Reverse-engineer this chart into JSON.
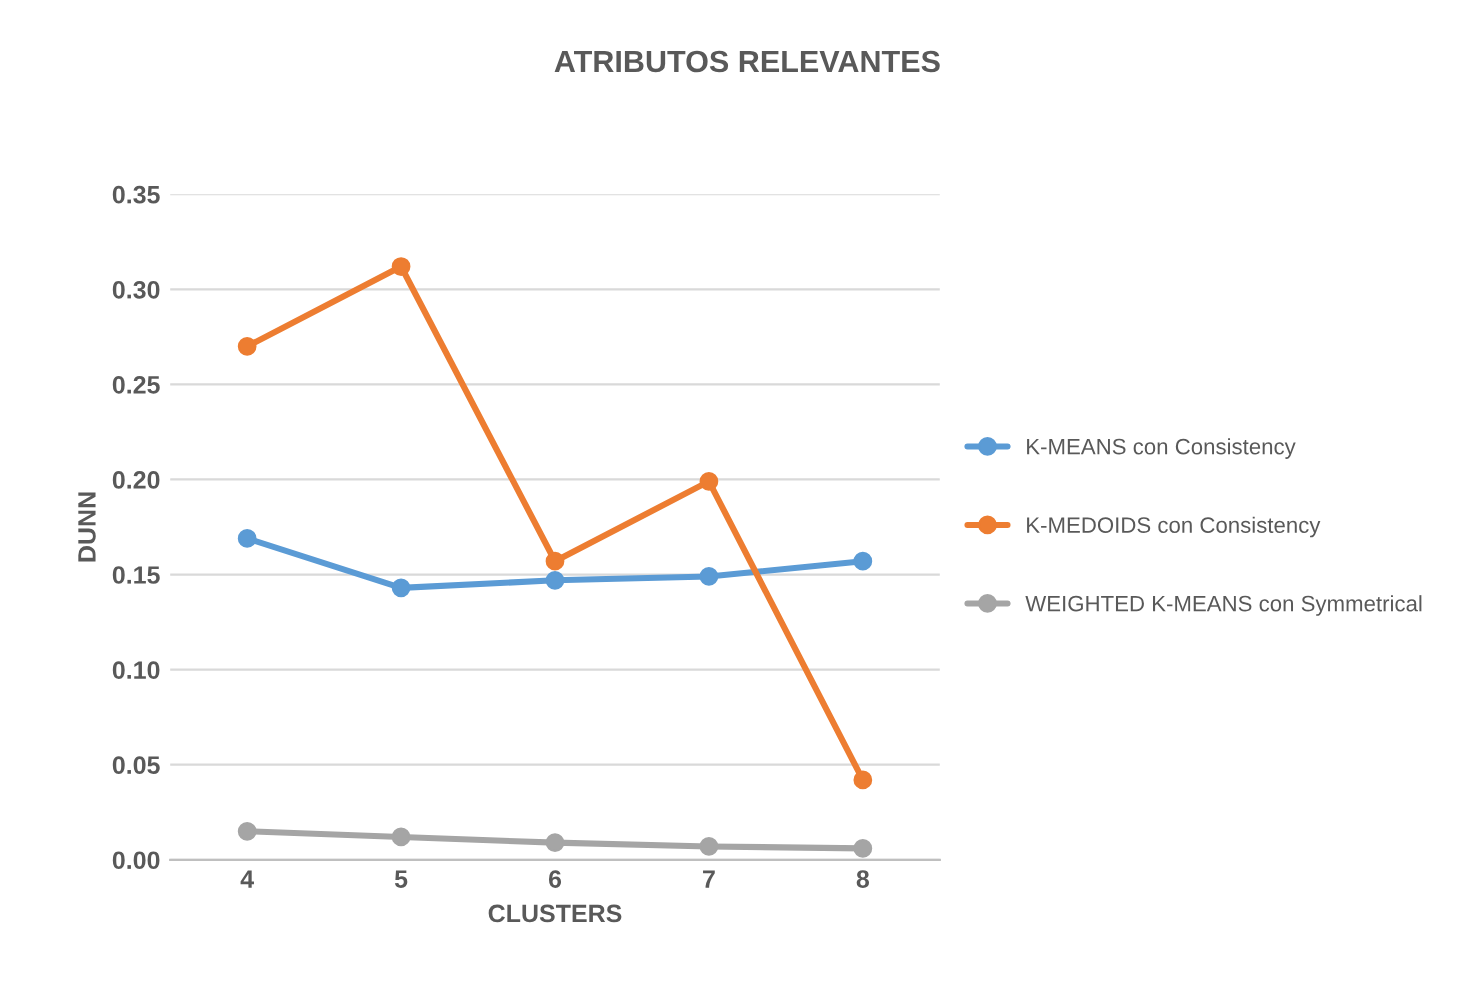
{
  "chart_data": {
    "type": "line",
    "title": "ATRIBUTOS RELEVANTES",
    "xlabel": "CLUSTERS",
    "ylabel": "DUNN",
    "categories": [
      "4",
      "5",
      "6",
      "7",
      "8"
    ],
    "series": [
      {
        "name": "K-MEANS con Consistency",
        "color": "#5b9bd5",
        "values": [
          0.169,
          0.143,
          0.147,
          0.149,
          0.157
        ]
      },
      {
        "name": "K-MEDOIDS con Consistency",
        "color": "#ed7d31",
        "values": [
          0.27,
          0.312,
          0.157,
          0.199,
          0.042
        ]
      },
      {
        "name": "WEIGHTED K-MEANS con Symmetrical",
        "color": "#a5a5a5",
        "values": [
          0.015,
          0.012,
          0.009,
          0.007,
          0.006
        ]
      }
    ],
    "ylim": [
      0,
      0.35
    ],
    "yticks": [
      {
        "value": 0,
        "label": "0.00"
      },
      {
        "value": 0.05,
        "label": "0.05"
      },
      {
        "value": 0.1,
        "label": "0.10"
      },
      {
        "value": 0.15,
        "label": "0.15"
      },
      {
        "value": 0.2,
        "label": "0.20"
      },
      {
        "value": 0.25,
        "label": "0.25"
      },
      {
        "value": 0.3,
        "label": "0.30"
      },
      {
        "value": 0.35,
        "label": "0.35"
      }
    ],
    "grid": "y",
    "legend": "right",
    "marker": "circle",
    "line_style": "solid"
  }
}
